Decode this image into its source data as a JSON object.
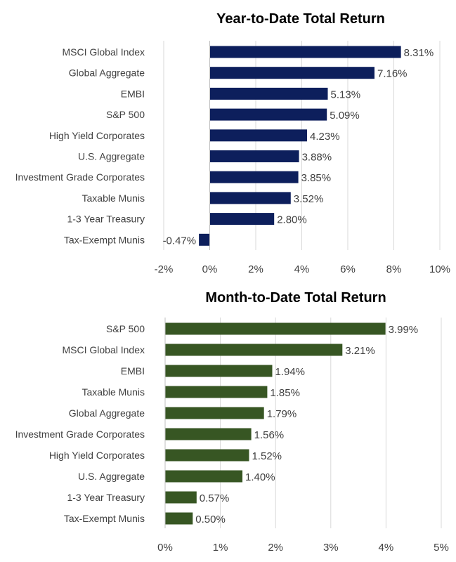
{
  "chart_data": [
    {
      "type": "bar",
      "orientation": "horizontal",
      "title": "Year-to-Date Total Return",
      "categories": [
        "MSCI Global Index",
        "Global Aggregate",
        "EMBI",
        "S&P 500",
        "High Yield Corporates",
        "U.S. Aggregate",
        "Investment Grade Corporates",
        "Taxable Munis",
        "1-3 Year Treasury",
        "Tax-Exempt Munis"
      ],
      "values": [
        8.31,
        7.16,
        5.13,
        5.09,
        4.23,
        3.88,
        3.85,
        3.52,
        2.8,
        -0.47
      ],
      "data_labels": [
        "8.31%",
        "7.16%",
        "5.13%",
        "5.09%",
        "4.23%",
        "3.88%",
        "3.85%",
        "3.52%",
        "2.80%",
        "-0.47%"
      ],
      "xlim": [
        -2,
        10
      ],
      "ticks": [
        -2,
        0,
        2,
        4,
        6,
        8,
        10
      ],
      "tick_labels": [
        "-2%",
        "0%",
        "2%",
        "4%",
        "6%",
        "8%",
        "10%"
      ],
      "color": "#0d1f5c",
      "grid": "vertical"
    },
    {
      "type": "bar",
      "orientation": "horizontal",
      "title": "Month-to-Date Total Return",
      "categories": [
        "S&P 500",
        "MSCI Global Index",
        "EMBI",
        "Taxable Munis",
        "Global Aggregate",
        "Investment Grade Corporates",
        "High Yield Corporates",
        "U.S. Aggregate",
        "1-3 Year Treasury",
        "Tax-Exempt Munis"
      ],
      "values": [
        3.99,
        3.21,
        1.94,
        1.85,
        1.79,
        1.56,
        1.52,
        1.4,
        0.57,
        0.5
      ],
      "data_labels": [
        "3.99%",
        "3.21%",
        "1.94%",
        "1.85%",
        "1.79%",
        "1.56%",
        "1.52%",
        "1.40%",
        "0.57%",
        "0.50%"
      ],
      "xlim": [
        0,
        5
      ],
      "ticks": [
        0,
        1,
        2,
        3,
        4,
        5
      ],
      "tick_labels": [
        "0%",
        "1%",
        "2%",
        "3%",
        "4%",
        "5%"
      ],
      "color": "#375623",
      "grid": "vertical"
    }
  ]
}
